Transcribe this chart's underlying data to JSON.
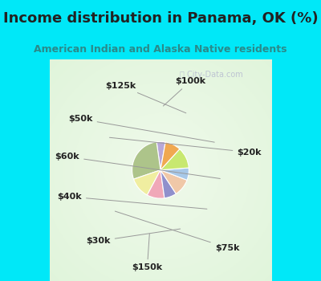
{
  "title": "Income distribution in Panama, OK (%)",
  "subtitle": "American Indian and Alaska Native residents",
  "labels": [
    "$100k",
    "$20k",
    "$75k",
    "$150k",
    "$30k",
    "$40k",
    "$60k",
    "$50k",
    "$125k"
  ],
  "sizes": [
    5,
    28,
    12,
    10,
    7,
    10,
    7,
    12,
    9
  ],
  "colors": [
    "#b8a8d8",
    "#adc48a",
    "#f0eea0",
    "#f0a8b8",
    "#9090cc",
    "#f0c8a8",
    "#a8c8e8",
    "#c8e870",
    "#f0a850"
  ],
  "bg_color": "#00e8f8",
  "chart_bg_outer": "#00e8f8",
  "title_color": "#222222",
  "subtitle_color": "#2a8a8a",
  "label_color": "#222222",
  "startangle": 80,
  "title_fontsize": 13,
  "subtitle_fontsize": 9,
  "label_fontsize": 8
}
